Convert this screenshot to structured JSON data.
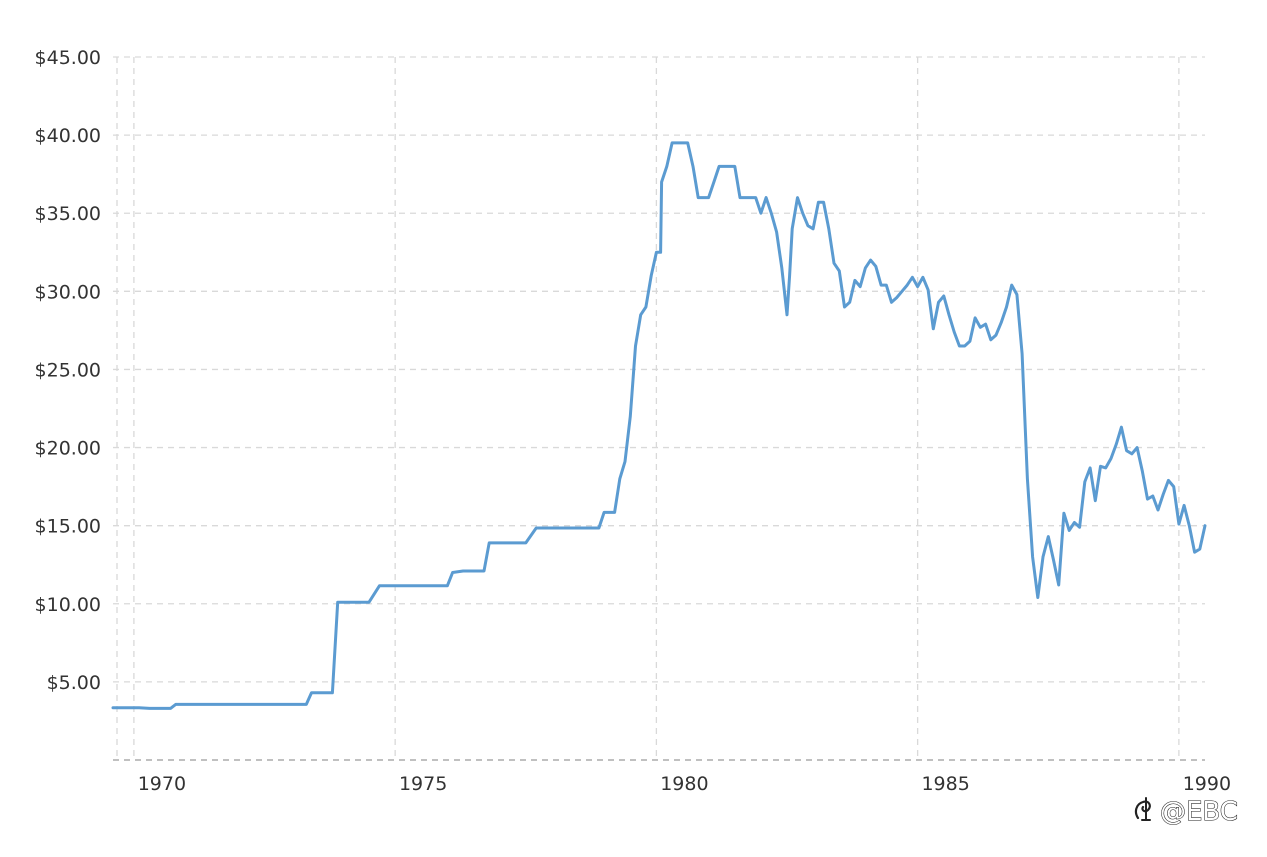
{
  "chart_data": {
    "type": "line",
    "title": "",
    "xlabel": "",
    "ylabel": "",
    "xlim": [
      1969.6,
      1990.5
    ],
    "ylim": [
      0,
      45
    ],
    "grid": true,
    "legend": "none",
    "y_ticks": [
      {
        "value": 5,
        "label": "$5.00"
      },
      {
        "value": 10,
        "label": "$10.00"
      },
      {
        "value": 15,
        "label": "$15.00"
      },
      {
        "value": 20,
        "label": "$20.00"
      },
      {
        "value": 25,
        "label": "$25.00"
      },
      {
        "value": 30,
        "label": "$30.00"
      },
      {
        "value": 35,
        "label": "$35.00"
      },
      {
        "value": 40,
        "label": "$40.00"
      },
      {
        "value": 45,
        "label": "$45.00"
      }
    ],
    "x_ticks": [
      {
        "value": 1970,
        "label": "1970"
      },
      {
        "value": 1975,
        "label": "1975"
      },
      {
        "value": 1980,
        "label": "1980"
      },
      {
        "value": 1985,
        "label": "1985"
      },
      {
        "value": 1990,
        "label": "1990"
      }
    ],
    "series": [
      {
        "color": "#5b9bd1",
        "points": [
          [
            1969.6,
            3.35
          ],
          [
            1970.1,
            3.35
          ],
          [
            1970.3,
            3.3
          ],
          [
            1970.7,
            3.3
          ],
          [
            1970.8,
            3.56
          ],
          [
            1971.5,
            3.56
          ],
          [
            1972.5,
            3.56
          ],
          [
            1973.0,
            3.56
          ],
          [
            1973.3,
            3.56
          ],
          [
            1973.4,
            4.3
          ],
          [
            1973.8,
            4.3
          ],
          [
            1973.9,
            10.1
          ],
          [
            1974.2,
            10.1
          ],
          [
            1974.5,
            10.1
          ],
          [
            1974.7,
            11.16
          ],
          [
            1975.5,
            11.16
          ],
          [
            1976.0,
            11.16
          ],
          [
            1976.1,
            12.0
          ],
          [
            1976.3,
            12.1
          ],
          [
            1976.7,
            12.1
          ],
          [
            1976.8,
            13.9
          ],
          [
            1977.2,
            13.9
          ],
          [
            1977.5,
            13.9
          ],
          [
            1977.7,
            14.85
          ],
          [
            1978.2,
            14.85
          ],
          [
            1978.6,
            14.85
          ],
          [
            1978.9,
            14.85
          ],
          [
            1979.0,
            15.85
          ],
          [
            1979.2,
            15.85
          ],
          [
            1979.3,
            18.0
          ],
          [
            1979.4,
            19.1
          ],
          [
            1979.5,
            22.0
          ],
          [
            1979.6,
            26.5
          ],
          [
            1979.7,
            28.5
          ],
          [
            1979.8,
            29.0
          ],
          [
            1979.9,
            31.0
          ],
          [
            1980.0,
            32.5
          ],
          [
            1980.08,
            32.5
          ],
          [
            1980.1,
            37.0
          ],
          [
            1980.2,
            38.0
          ],
          [
            1980.3,
            39.5
          ],
          [
            1980.5,
            39.5
          ],
          [
            1980.6,
            39.5
          ],
          [
            1980.7,
            38.0
          ],
          [
            1980.8,
            36.0
          ],
          [
            1981.0,
            36.0
          ],
          [
            1981.1,
            37.0
          ],
          [
            1981.2,
            38.0
          ],
          [
            1981.5,
            38.0
          ],
          [
            1981.6,
            36.0
          ],
          [
            1981.9,
            36.0
          ],
          [
            1982.0,
            35.0
          ],
          [
            1982.1,
            36.0
          ],
          [
            1982.2,
            35.0
          ],
          [
            1982.3,
            33.8
          ],
          [
            1982.4,
            31.5
          ],
          [
            1982.5,
            28.5
          ],
          [
            1982.55,
            31.0
          ],
          [
            1982.6,
            34.0
          ],
          [
            1982.7,
            36.0
          ],
          [
            1982.8,
            35.0
          ],
          [
            1982.9,
            34.2
          ],
          [
            1983.0,
            34.0
          ],
          [
            1983.1,
            35.7
          ],
          [
            1983.2,
            35.7
          ],
          [
            1983.3,
            34.0
          ],
          [
            1983.4,
            31.8
          ],
          [
            1983.5,
            31.3
          ],
          [
            1983.6,
            29.0
          ],
          [
            1983.7,
            29.3
          ],
          [
            1983.8,
            30.7
          ],
          [
            1983.9,
            30.3
          ],
          [
            1984.0,
            31.5
          ],
          [
            1984.1,
            32.0
          ],
          [
            1984.2,
            31.6
          ],
          [
            1984.3,
            30.4
          ],
          [
            1984.4,
            30.4
          ],
          [
            1984.5,
            29.3
          ],
          [
            1984.6,
            29.6
          ],
          [
            1984.7,
            30.0
          ],
          [
            1984.8,
            30.4
          ],
          [
            1984.9,
            30.9
          ],
          [
            1985.0,
            30.3
          ],
          [
            1985.1,
            30.9
          ],
          [
            1985.2,
            30.1
          ],
          [
            1985.3,
            27.6
          ],
          [
            1985.4,
            29.3
          ],
          [
            1985.5,
            29.7
          ],
          [
            1985.6,
            28.5
          ],
          [
            1985.7,
            27.4
          ],
          [
            1985.8,
            26.5
          ],
          [
            1985.9,
            26.5
          ],
          [
            1986.0,
            26.8
          ],
          [
            1986.1,
            28.3
          ],
          [
            1986.2,
            27.7
          ],
          [
            1986.3,
            27.9
          ],
          [
            1986.4,
            26.9
          ],
          [
            1986.5,
            27.2
          ],
          [
            1986.6,
            28.0
          ],
          [
            1986.7,
            29.0
          ],
          [
            1986.8,
            30.4
          ],
          [
            1986.9,
            29.8
          ],
          [
            1987.0,
            26.0
          ],
          [
            1987.1,
            18.0
          ],
          [
            1987.2,
            13.0
          ],
          [
            1987.3,
            10.4
          ],
          [
            1987.4,
            13.0
          ],
          [
            1987.5,
            14.3
          ],
          [
            1987.6,
            12.8
          ],
          [
            1987.7,
            11.2
          ],
          [
            1987.8,
            15.8
          ],
          [
            1987.9,
            14.7
          ],
          [
            1988.0,
            15.2
          ],
          [
            1988.1,
            14.9
          ],
          [
            1988.2,
            17.8
          ],
          [
            1988.3,
            18.7
          ],
          [
            1988.4,
            16.6
          ],
          [
            1988.5,
            18.8
          ],
          [
            1988.6,
            18.7
          ],
          [
            1988.7,
            19.3
          ],
          [
            1988.8,
            20.2
          ],
          [
            1988.9,
            21.3
          ],
          [
            1989.0,
            19.8
          ],
          [
            1989.1,
            19.6
          ],
          [
            1989.2,
            20.0
          ],
          [
            1989.3,
            18.5
          ],
          [
            1989.4,
            16.7
          ],
          [
            1989.5,
            16.9
          ],
          [
            1989.6,
            16.0
          ],
          [
            1989.7,
            17.0
          ],
          [
            1989.8,
            17.9
          ],
          [
            1989.9,
            17.5
          ],
          [
            1990.0,
            15.1
          ],
          [
            1990.1,
            16.3
          ],
          [
            1990.2,
            15.0
          ],
          [
            1990.3,
            13.3
          ],
          [
            1990.4,
            13.5
          ],
          [
            1990.5,
            15.0
          ]
        ]
      }
    ]
  },
  "watermark": {
    "text": "@EBC",
    "icon": "ebc-logo-icon"
  }
}
